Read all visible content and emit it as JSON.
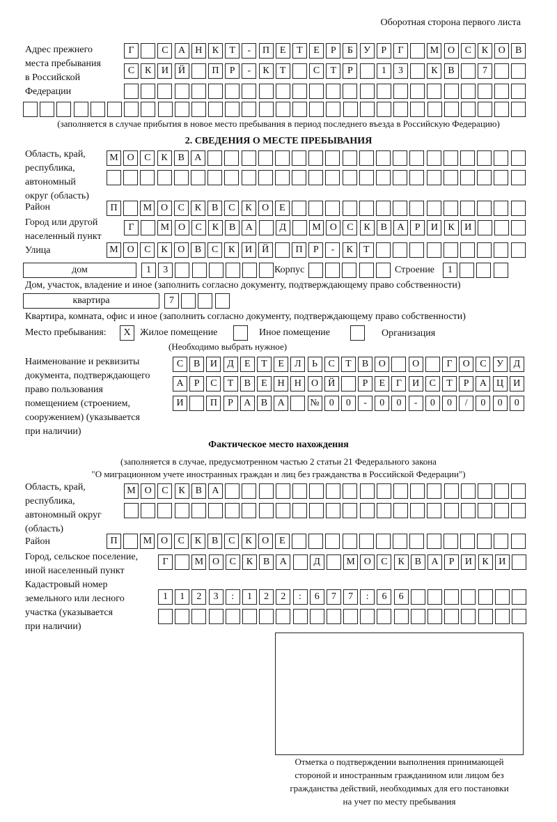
{
  "header": "Оборотная сторона первого листа",
  "prev_address": {
    "label": "Адрес прежнего\nместа пребывания\nв Российской\nФедерации",
    "rows": [
      [
        "Г",
        "",
        "С",
        "А",
        "Н",
        "К",
        "Т",
        "-",
        "П",
        "Е",
        "Т",
        "Е",
        "Р",
        "Б",
        "У",
        "Р",
        "Г",
        "",
        "М",
        "О",
        "С",
        "К",
        "О",
        "В"
      ],
      [
        "С",
        "К",
        "И",
        "Й",
        "",
        "П",
        "Р",
        "-",
        "К",
        "Т",
        "",
        "С",
        "Т",
        "Р",
        "",
        "1",
        "3",
        "",
        "К",
        "В",
        "",
        "7",
        "",
        ""
      ],
      [
        "",
        "",
        "",
        "",
        "",
        "",
        "",
        "",
        "",
        "",
        "",
        "",
        "",
        "",
        "",
        "",
        "",
        "",
        "",
        "",
        "",
        "",
        "",
        ""
      ],
      [
        "",
        "",
        "",
        "",
        "",
        "",
        "",
        "",
        "",
        "",
        "",
        "",
        "",
        "",
        "",
        "",
        "",
        "",
        "",
        "",
        "",
        "",
        "",
        "",
        "",
        "",
        "",
        "",
        "",
        ""
      ]
    ],
    "note": "(заполняется в случае прибытия в новое место пребывания в период последнего въезда в Российскую Федерацию)"
  },
  "section2": {
    "title": "2. СВЕДЕНИЯ О МЕСТЕ ПРЕБЫВАНИЯ",
    "region_label": "Область, край,\nреспублика,\nавтономный\nокруг (область)",
    "region_rows": [
      [
        "М",
        "О",
        "С",
        "К",
        "В",
        "А",
        "",
        "",
        "",
        "",
        "",
        "",
        "",
        "",
        "",
        "",
        "",
        "",
        "",
        "",
        "",
        "",
        "",
        "",
        ""
      ],
      [
        "",
        "",
        "",
        "",
        "",
        "",
        "",
        "",
        "",
        "",
        "",
        "",
        "",
        "",
        "",
        "",
        "",
        "",
        "",
        "",
        "",
        "",
        "",
        "",
        ""
      ]
    ],
    "district_label": "Район",
    "district_row": [
      "П",
      "",
      "М",
      "О",
      "С",
      "К",
      "В",
      "С",
      "К",
      "О",
      "Е",
      "",
      "",
      "",
      "",
      "",
      "",
      "",
      "",
      "",
      "",
      "",
      "",
      "",
      ""
    ],
    "city_label": "Город или другой\nнаселенный пункт",
    "city_row": [
      "Г",
      "",
      "М",
      "О",
      "С",
      "К",
      "В",
      "А",
      "",
      "Д",
      "",
      "М",
      "О",
      "С",
      "К",
      "В",
      "А",
      "Р",
      "И",
      "К",
      "И",
      "",
      "",
      ""
    ],
    "street_label": "Улица",
    "street_row": [
      "М",
      "О",
      "С",
      "К",
      "О",
      "В",
      "С",
      "К",
      "И",
      "Й",
      "",
      "П",
      "Р",
      "-",
      "К",
      "Т",
      "",
      "",
      "",
      "",
      "",
      "",
      "",
      "",
      ""
    ],
    "house_type": "дом",
    "house_row": [
      "1",
      "3",
      "",
      "",
      "",
      "",
      "",
      ""
    ],
    "korpus_label": "Корпус",
    "korpus_row": [
      "",
      "",
      "",
      "",
      ""
    ],
    "building_label": "Строение",
    "building_row": [
      "1",
      "",
      "",
      ""
    ],
    "house_note": "Дом, участок, владение и иное (заполнить согласно документу, подтверждающему право собственности)",
    "flat_type": "квартира",
    "flat_row": [
      "7",
      "",
      "",
      ""
    ],
    "flat_note": "Квартира, комната, офис и иное (заполнить согласно документу, подтверждающему право собственности)",
    "stay_label": "Место пребывания:",
    "stay_options": [
      {
        "label": "Жилое помещение",
        "mark": "Х"
      },
      {
        "label": "Иное помещение",
        "mark": ""
      },
      {
        "label": "Организация",
        "mark": ""
      }
    ],
    "stay_note": "(Необходимо выбрать нужное)",
    "doc_label": "Наименование и реквизиты\nдокумента, подтверждающего\nправо пользования\nпомещением (строением,\nсооружением) (указывается\nпри наличии)",
    "doc_rows": [
      [
        "С",
        "В",
        "И",
        "Д",
        "Е",
        "Т",
        "Е",
        "Л",
        "Ь",
        "С",
        "Т",
        "В",
        "О",
        "",
        "О",
        "",
        "Г",
        "О",
        "С",
        "У",
        "Д"
      ],
      [
        "А",
        "Р",
        "С",
        "Т",
        "В",
        "Е",
        "Н",
        "Н",
        "О",
        "Й",
        "",
        "Р",
        "Е",
        "Г",
        "И",
        "С",
        "Т",
        "Р",
        "А",
        "Ц",
        "И"
      ],
      [
        "И",
        "",
        "П",
        "Р",
        "А",
        "В",
        "А",
        "",
        "№",
        "0",
        "0",
        "-",
        "0",
        "0",
        "-",
        "0",
        "0",
        "/",
        "0",
        "0",
        "0"
      ]
    ]
  },
  "actual": {
    "title": "Фактическое место нахождения",
    "note1": "(заполняется в случае, предусмотренном частью 2 статьи 21 Федерального закона",
    "note2": "\"О миграционном учете иностранных граждан и лиц без гражданства в Российской Федерации\")",
    "region_label": "Область, край,\nреспублика,\nавтономный округ\n(область)",
    "region_rows": [
      [
        "М",
        "О",
        "С",
        "К",
        "В",
        "А",
        "",
        "",
        "",
        "",
        "",
        "",
        "",
        "",
        "",
        "",
        "",
        "",
        "",
        "",
        "",
        "",
        "",
        ""
      ],
      [
        "",
        "",
        "",
        "",
        "",
        "",
        "",
        "",
        "",
        "",
        "",
        "",
        "",
        "",
        "",
        "",
        "",
        "",
        "",
        "",
        "",
        "",
        "",
        ""
      ]
    ],
    "district_label": "Район",
    "district_row": [
      "П",
      "",
      "М",
      "О",
      "С",
      "К",
      "В",
      "С",
      "К",
      "О",
      "Е",
      "",
      "",
      "",
      "",
      "",
      "",
      "",
      "",
      "",
      "",
      "",
      "",
      "",
      ""
    ],
    "city_label": "Город, сельское поселение,\nиной населенный пункт",
    "city_row": [
      "Г",
      "",
      "М",
      "О",
      "С",
      "К",
      "В",
      "А",
      "",
      "Д",
      "",
      "М",
      "О",
      "С",
      "К",
      "В",
      "А",
      "Р",
      "И",
      "К",
      "И",
      ""
    ],
    "cadastre_label": "Кадастровый номер\nземельного или лесного\nучастка (указывается\nпри наличии)",
    "cadastre_rows": [
      [
        "1",
        "1",
        "2",
        "3",
        ":",
        "1",
        "2",
        "2",
        ":",
        "6",
        "7",
        "7",
        ":",
        "6",
        "6",
        "",
        "",
        "",
        "",
        "",
        "",
        ""
      ],
      [
        "",
        "",
        "",
        "",
        "",
        "",
        "",
        "",
        "",
        "",
        "",
        "",
        "",
        "",
        "",
        "",
        "",
        "",
        "",
        "",
        "",
        ""
      ]
    ]
  },
  "stamp": {
    "caption": "Отметка о подтверждении выполнения принимающей\nстороной и иностранным гражданином или лицом без\nгражданства действий, необходимых для его постановки\nна учет по месту пребывания"
  }
}
